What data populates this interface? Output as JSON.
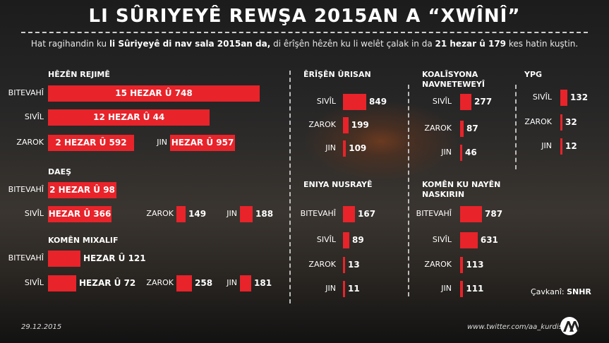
{
  "title": "LI SÛRIYEYÊ REWŞA 2015AN A “XWÎNÎ”",
  "subtitle": {
    "part1": "Hat ragihandin ku ",
    "bold1": "li Sûriyeyê di nav sala 2015an da,",
    "part2": " di êrîşên hêzên ku li welêt çalak in da ",
    "bold2": "21 hezar û 179",
    "part3": " kes hatin kuştin."
  },
  "chart_data": [
    {
      "type": "bar",
      "title": "HÊZÊN REJIMÊ",
      "categories": [
        "BITEVAHÎ",
        "SIVÎL",
        "ZAROK",
        "JIN"
      ],
      "values": [
        15748,
        12044,
        2592,
        1957
      ],
      "value_labels": [
        "15 HEZAR Û 748",
        "12 HEZAR Û 44",
        "2 HEZAR Û 592",
        "HEZAR Û 957"
      ]
    },
    {
      "type": "bar",
      "title": "DAEŞ",
      "categories": [
        "BITEVAHÎ",
        "SIVÎL",
        "ZAROK",
        "JIN"
      ],
      "values": [
        2098,
        1366,
        149,
        188
      ],
      "value_labels": [
        "2 HEZAR Û 98",
        "HEZAR Û 366",
        "149",
        "188"
      ]
    },
    {
      "type": "bar",
      "title": "KOMÊN MIXALIF",
      "categories": [
        "BITEVAHÎ",
        "SIVÎL",
        "ZAROK",
        "JIN"
      ],
      "values": [
        1121,
        1072,
        258,
        181
      ],
      "value_labels": [
        "HEZAR Û 121",
        "HEZAR Û 72",
        "258",
        "181"
      ]
    },
    {
      "type": "bar",
      "title": "ÊRÎŞÊN ÛRISAN",
      "categories": [
        "SIVÎL",
        "ZAROK",
        "JIN"
      ],
      "values": [
        849,
        199,
        109
      ]
    },
    {
      "type": "bar",
      "title": "KOALÎSYONA NAVNETEWEYÎ",
      "categories": [
        "SIVÎL",
        "ZAROK",
        "JIN"
      ],
      "values": [
        277,
        87,
        46
      ]
    },
    {
      "type": "bar",
      "title": "YPG",
      "categories": [
        "SIVÎL",
        "ZAROK",
        "JIN"
      ],
      "values": [
        132,
        32,
        12
      ]
    },
    {
      "type": "bar",
      "title": "ENIYA NUSRAYÊ",
      "categories": [
        "BITEVAHÎ",
        "SIVÎL",
        "ZAROK",
        "JIN"
      ],
      "values": [
        167,
        89,
        13,
        11
      ]
    },
    {
      "type": "bar",
      "title": "KOMÊN KU NAYÊN NASKIRIN",
      "categories": [
        "BITEVAHÎ",
        "SIVÎL",
        "ZAROK",
        "JIN"
      ],
      "values": [
        787,
        631,
        113,
        111
      ]
    }
  ],
  "source": {
    "label": "Çavkanî:",
    "name": "SNHR"
  },
  "footer": {
    "date": "29.12.2015",
    "twitter": "www.twitter.com/aa_kurdish"
  },
  "colors": {
    "bar": "#e8232a",
    "text": "#ffffff"
  },
  "logo": "aa-logo-icon"
}
